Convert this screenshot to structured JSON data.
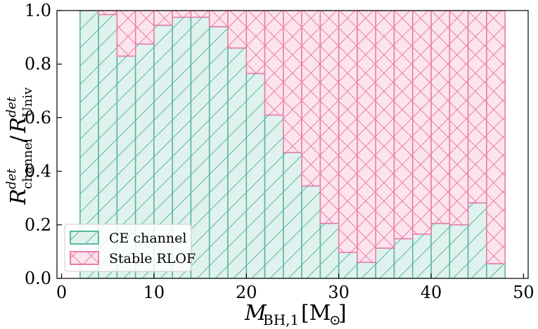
{
  "chart_data": {
    "type": "bar",
    "stacked": true,
    "bin_edges": [
      2,
      4,
      6,
      8,
      10,
      12,
      14,
      16,
      18,
      20,
      22,
      24,
      26,
      28,
      30,
      32,
      34,
      36,
      38,
      40,
      42,
      44,
      46,
      48
    ],
    "series": [
      {
        "name": "CE channel",
        "color": "#5bb8a3",
        "fill": "#e0f2ed",
        "hatch": "diagonal",
        "values": [
          1.0,
          0.985,
          0.83,
          0.875,
          0.945,
          0.975,
          0.975,
          0.94,
          0.86,
          0.765,
          0.61,
          0.47,
          0.345,
          0.205,
          0.097,
          0.06,
          0.113,
          0.148,
          0.165,
          0.205,
          0.2,
          0.282,
          0.055
        ]
      },
      {
        "name": "Stable RLOF",
        "color": "#e87eac",
        "fill": "#fce4ec",
        "hatch": "cross",
        "values": [
          0.0,
          0.015,
          0.17,
          0.125,
          0.055,
          0.025,
          0.025,
          0.06,
          0.14,
          0.235,
          0.39,
          0.53,
          0.655,
          0.795,
          0.903,
          0.94,
          0.887,
          0.852,
          0.835,
          0.795,
          0.8,
          0.718,
          0.945
        ]
      }
    ],
    "xlabel": "M_BH,1 [M_⊙]",
    "ylabel": "R_channel^det / R_Univ^det",
    "xlim": [
      -0.5,
      50.5
    ],
    "ylim": [
      0.0,
      1.0
    ],
    "xticks": [
      "0",
      "10",
      "20",
      "30",
      "40",
      "50"
    ],
    "yticks": [
      "0.0",
      "0.2",
      "0.4",
      "0.6",
      "0.8",
      "1.0"
    ],
    "legend": [
      "CE channel",
      "Stable RLOF"
    ],
    "legend_position": "lower-left",
    "grid": false
  }
}
